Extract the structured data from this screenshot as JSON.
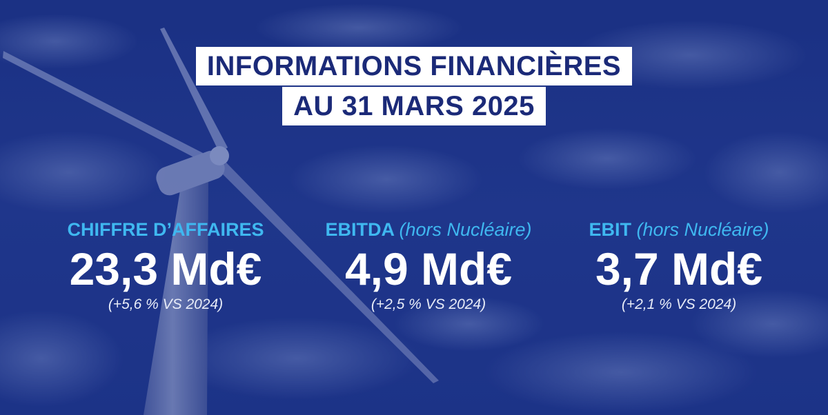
{
  "title": {
    "line1": "INFORMATIONS FINANCIÈRES",
    "line2": "AU 31 MARS 2025"
  },
  "kpis": [
    {
      "label": "CHIFFRE D’AFFAIRES",
      "sublabel": "",
      "value": "23,3 Md€",
      "change": "(+5,6 % VS 2024)"
    },
    {
      "label": "EBITDA",
      "sublabel": "(hors Nucléaire)",
      "value": "4,9 Md€",
      "change": "(+2,5 % VS 2024)"
    },
    {
      "label": "EBIT",
      "sublabel": "(hors Nucléaire)",
      "value": "3,7 Md€",
      "change": "(+2,1 % VS 2024)"
    }
  ],
  "colors": {
    "background": "#1a2f7f",
    "title_text": "#1b2a78",
    "title_box": "#ffffff",
    "kpi_label": "#3fb8f0",
    "kpi_value": "#ffffff"
  },
  "background_image": "wind-turbine-against-cloudy-blue-sky"
}
